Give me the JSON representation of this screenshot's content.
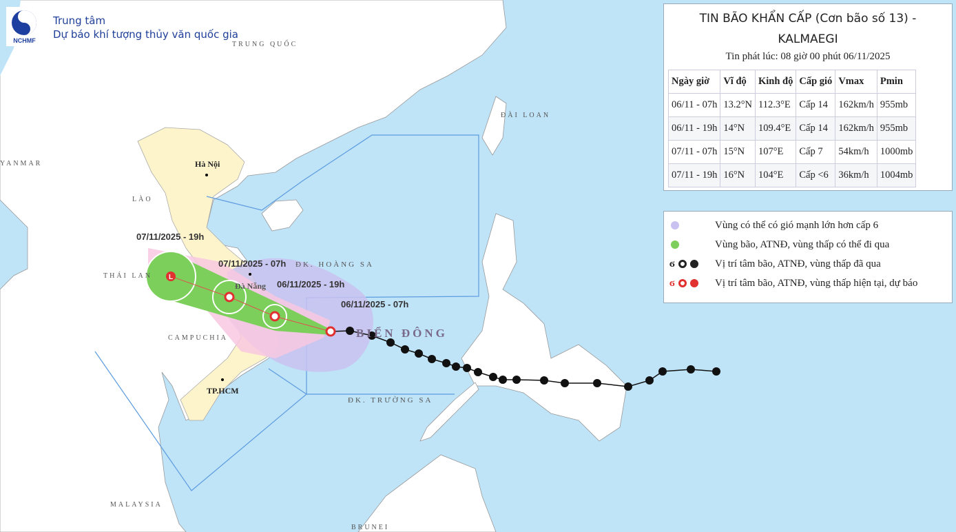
{
  "header": {
    "org_line1": "Trung tâm",
    "org_line2": "Dự báo khí tượng thủy văn quốc gia",
    "logo_text": "NCHMF"
  },
  "map_labels": {
    "china": "TRUNG QUỐC",
    "myanmar": "YANMAR",
    "laos": "LÀO",
    "thailand": "THÁI LAN",
    "cambodia": "CAMPUCHIA",
    "taiwan": "ĐÀI LOAN",
    "malaysia": "MALAYSIA",
    "brunei": "BRUNEI",
    "east_sea": "BIỂN ĐÔNG",
    "paracel": "ĐK. HOÀNG SA",
    "spratly": "ĐK. TRƯỜNG SA",
    "hanoi": "Hà Nội",
    "danang": "Đà Nẵng",
    "hcmc": "TP.HCM"
  },
  "track_labels": [
    "06/11/2025 - 07h",
    "06/11/2025 - 19h",
    "07/11/2025 - 07h",
    "07/11/2025 - 19h"
  ],
  "info": {
    "title": "TIN BÃO KHẨN CẤP (Cơn bão số 13) -",
    "title2": "KALMAEGI",
    "issued": "Tin phát lúc: 08 giờ 00 phút 06/11/2025",
    "headers": [
      "Ngày giờ",
      "Vĩ độ",
      "Kinh độ",
      "Cấp gió",
      "Vmax",
      "Pmin"
    ],
    "rows": [
      [
        "06/11 - 07h",
        "13.2°N",
        "112.3°E",
        "Cấp 14",
        "162km/h",
        "955mb"
      ],
      [
        "06/11 - 19h",
        "14°N",
        "109.4°E",
        "Cấp 14",
        "162km/h",
        "955mb"
      ],
      [
        "07/11 - 07h",
        "15°N",
        "107°E",
        "Cấp 7",
        "54km/h",
        "1000mb"
      ],
      [
        "07/11 - 19h",
        "16°N",
        "104°E",
        "Cấp <6",
        "36km/h",
        "1004mb"
      ]
    ]
  },
  "legend": [
    {
      "text": "Vùng có thể có gió mạnh lớn hơn cấp 6",
      "color": "#c9c2f0"
    },
    {
      "text": "Vùng bão, ATNĐ, vùng thấp có thể đi qua",
      "color": "#7ccf5a"
    },
    {
      "text": "Vị trí tâm bão, ATNĐ, vùng thấp đã qua",
      "color": "#222222"
    },
    {
      "text": "Vị trí tâm bão, ATNĐ, vùng thấp hiện tại, dự báo",
      "color": "#e03030"
    }
  ],
  "colors": {
    "sea": "#bfe3f7",
    "land": "#ffffff",
    "vietnam": "#fdf4cc",
    "strong_wind": "#c9c2f0",
    "storm_zone": "#7ccf5a",
    "risk": "#f8c8e0"
  }
}
